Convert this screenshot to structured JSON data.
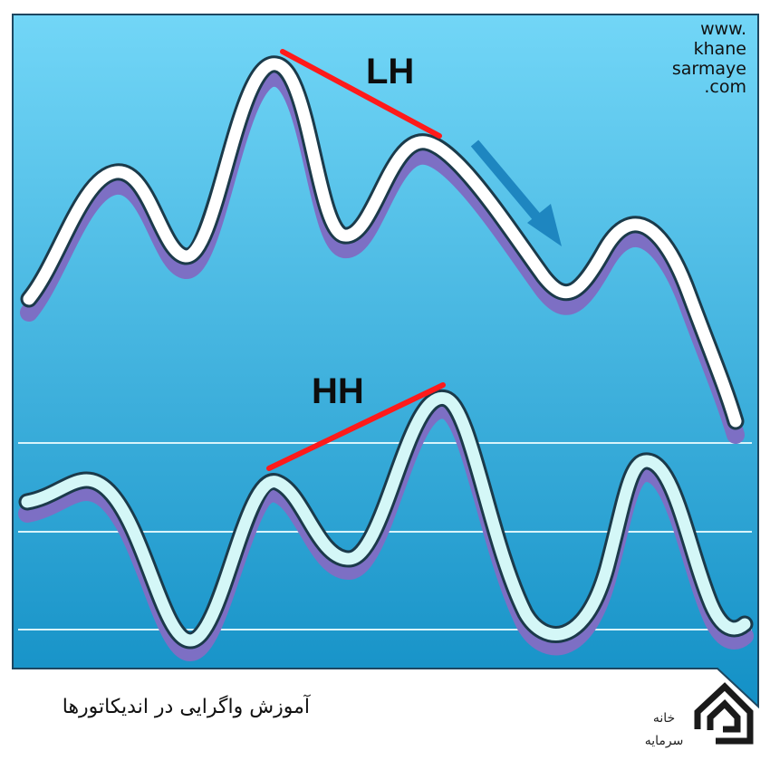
{
  "chart_data": {
    "type": "line",
    "title": "",
    "annotations": {
      "price_label": "LH",
      "indicator_label": "HH"
    },
    "grid": false,
    "legend": "none"
  },
  "watermark": {
    "line1": "www.",
    "line2": "khane",
    "line3": "sarmaye",
    "line4": ".com"
  },
  "caption": "آموزش واگرایی در اندیکاتورها",
  "logo": {
    "text_top": "خانه",
    "text_bottom": "سرمایه"
  },
  "colors": {
    "background_top": "#6fd4f6",
    "background_bottom": "#1592c8",
    "trend_line": "#ff1a1a",
    "price_line": "#ffffff",
    "indicator_line": "#d4f7f7",
    "shadow": "#7d6fc4",
    "arrow": "#1e86c0"
  }
}
